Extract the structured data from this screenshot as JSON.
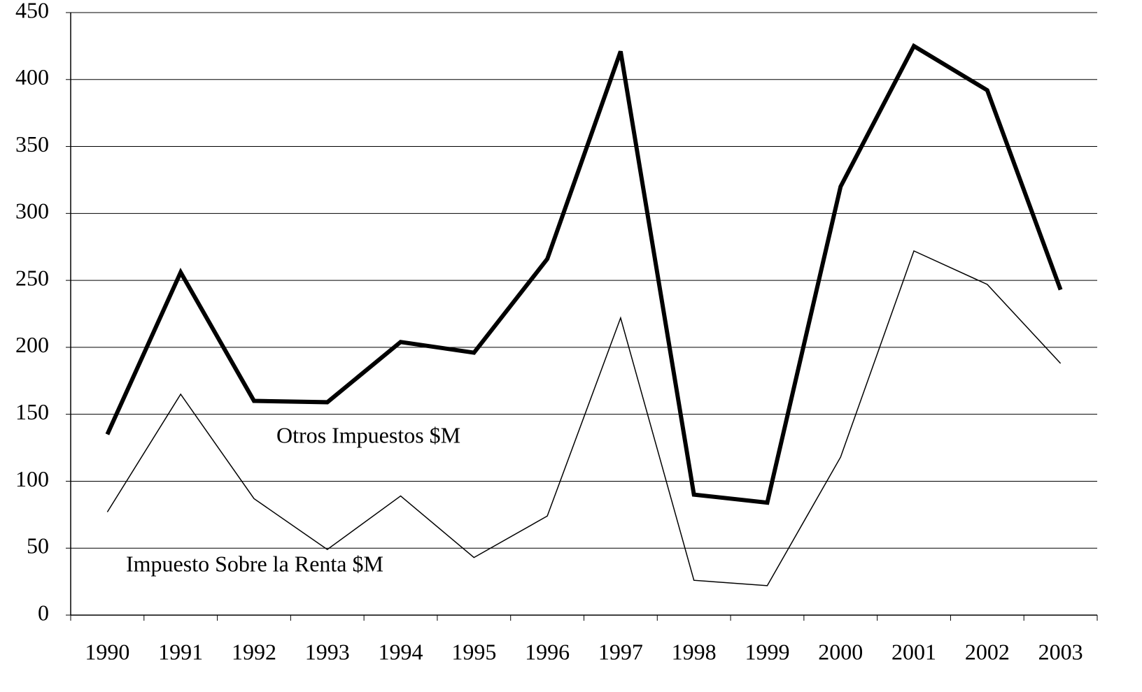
{
  "chart_data": {
    "type": "line",
    "categories": [
      "1990",
      "1991",
      "1992",
      "1993",
      "1994",
      "1995",
      "1996",
      "1997",
      "1998",
      "1999",
      "2000",
      "2001",
      "2002",
      "2003"
    ],
    "series": [
      {
        "name": "Otros Impuestos $M",
        "color": "#000000",
        "values": [
          135,
          256,
          160,
          159,
          204,
          196,
          266,
          421,
          90,
          84,
          320,
          425,
          392,
          243
        ]
      },
      {
        "name": "Impuesto Sobre la Renta $M",
        "color": "#000000",
        "values": [
          77,
          165,
          87,
          49,
          89,
          43,
          74,
          222,
          26,
          22,
          118,
          272,
          247,
          188
        ]
      }
    ],
    "ylim": [
      0,
      450
    ],
    "yticks": [
      0,
      50,
      100,
      150,
      200,
      250,
      300,
      350,
      400,
      450
    ],
    "grid": true
  }
}
